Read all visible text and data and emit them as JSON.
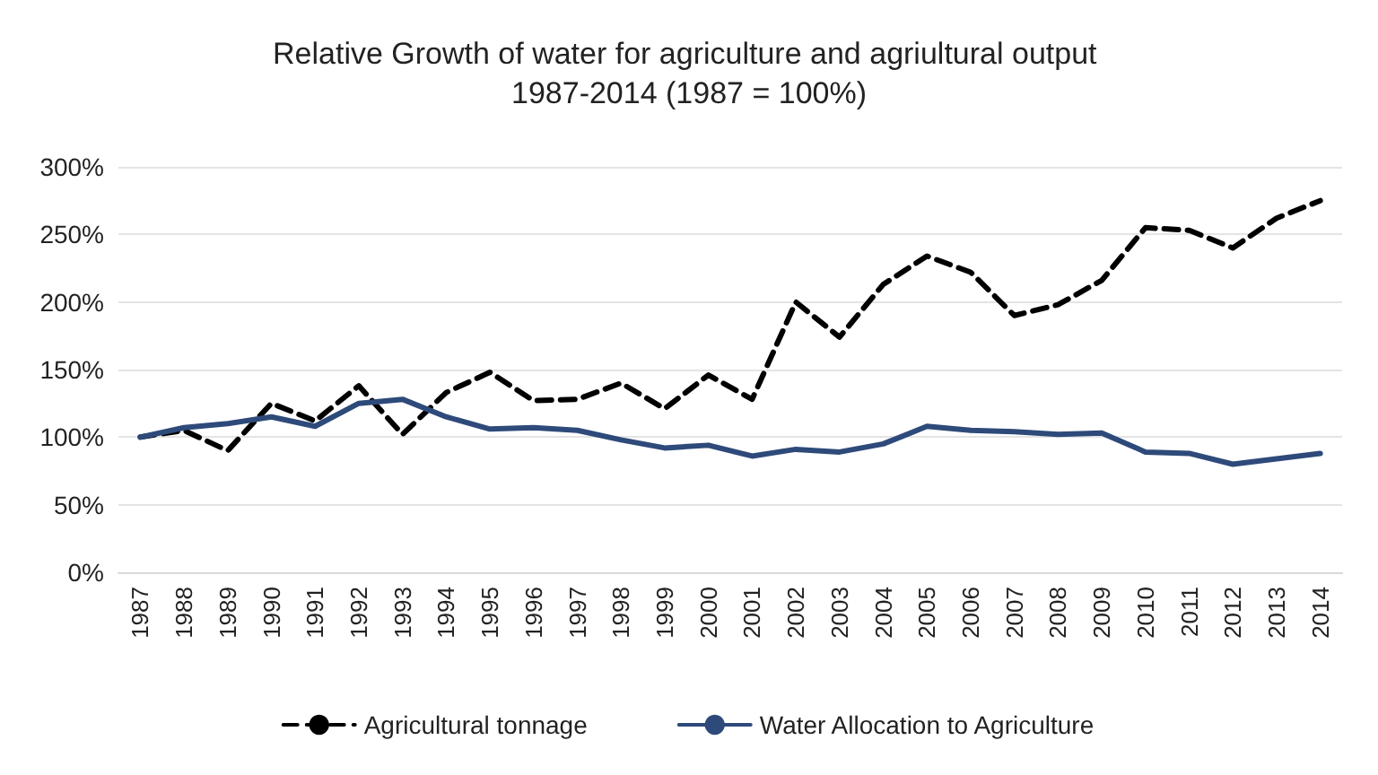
{
  "chart_data": {
    "type": "line",
    "title": "Relative Growth of water for agriculture and agriultural output 1987-2014 (1987 = 100%)",
    "categories": [
      "1987",
      "1988",
      "1989",
      "1990",
      "1991",
      "1992",
      "1993",
      "1994",
      "1995",
      "1996",
      "1997",
      "1998",
      "1999",
      "2000",
      "2001",
      "2002",
      "2003",
      "2004",
      "2005",
      "2006",
      "2007",
      "2008",
      "2009",
      "2010",
      "2011",
      "2012",
      "2013",
      "2014"
    ],
    "series": [
      {
        "name": "Agricultural tonnage",
        "color": "#000000",
        "line_style": "dashed",
        "values": [
          100,
          105,
          90,
          125,
          112,
          138,
          102,
          133,
          148,
          127,
          128,
          140,
          121,
          146,
          128,
          200,
          174,
          213,
          234,
          222,
          190,
          198,
          216,
          255,
          253,
          240,
          262,
          275
        ]
      },
      {
        "name": "Water Allocation to Agriculture",
        "color": "#2e4a7a",
        "line_style": "solid",
        "values": [
          100,
          107,
          110,
          115,
          108,
          125,
          128,
          115,
          106,
          107,
          105,
          98,
          92,
          94,
          86,
          91,
          89,
          95,
          108,
          105,
          104,
          102,
          103,
          89,
          88,
          80,
          84,
          88
        ]
      }
    ],
    "ylim": [
      0,
      300
    ],
    "yticks": [
      {
        "value": 0,
        "label": "0%"
      },
      {
        "value": 50,
        "label": "50%"
      },
      {
        "value": 100,
        "label": "100%"
      },
      {
        "value": 150,
        "label": "150%"
      },
      {
        "value": 200,
        "label": "200%"
      },
      {
        "value": 250,
        "label": "250%"
      },
      {
        "value": 300,
        "label": "300%"
      }
    ],
    "grid": "y",
    "legend": "bottom",
    "marker": "none"
  }
}
